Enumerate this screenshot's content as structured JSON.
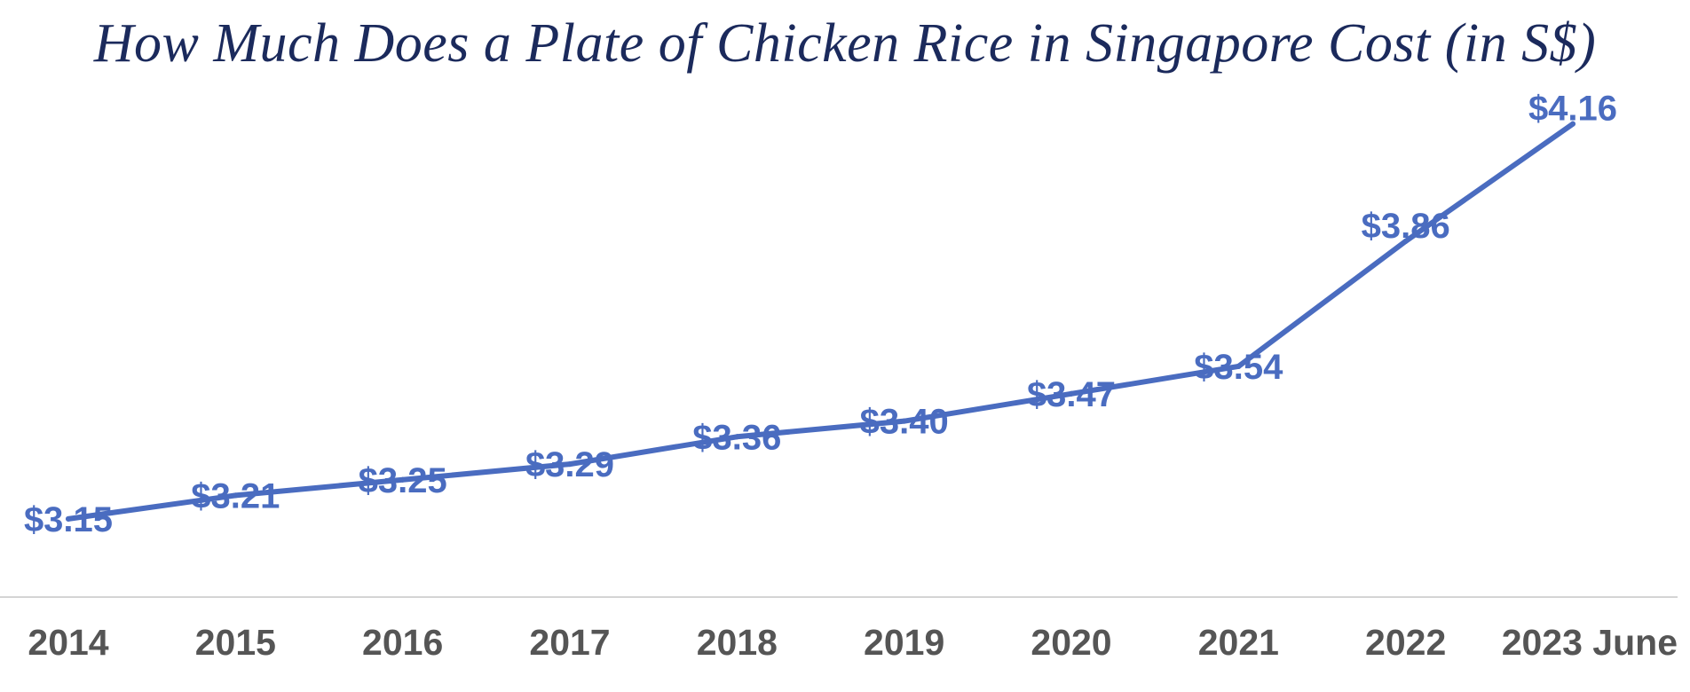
{
  "chart_data": {
    "type": "line",
    "title": "How Much Does a Plate of Chicken Rice in Singapore Cost (in S$)",
    "categories": [
      "2014",
      "2015",
      "2016",
      "2017",
      "2018",
      "2019",
      "2020",
      "2021",
      "2022",
      "2023 June"
    ],
    "series": [
      {
        "values": [
          3.15,
          3.21,
          3.25,
          3.29,
          3.36,
          3.4,
          3.47,
          3.54,
          3.86,
          4.16
        ],
        "data_labels": [
          "$3.15",
          "$3.21",
          "$3.25",
          "$3.29",
          "$3.36",
          "$3.40",
          "$3.47",
          "$3.54",
          "$3.86",
          "$4.16"
        ],
        "color": "#4a6cc0"
      }
    ],
    "xlabel": "",
    "ylabel": "",
    "ylim": [
      2.95,
      4.25
    ],
    "grid": false,
    "legend": "none",
    "axis_color": "#d4d4d4"
  }
}
